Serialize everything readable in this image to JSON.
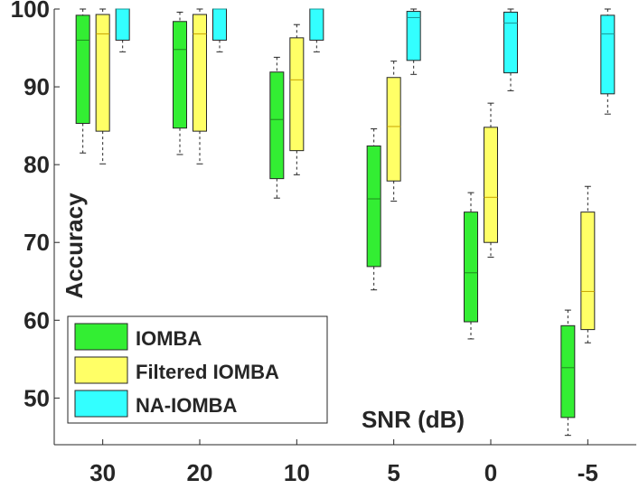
{
  "chart_data": {
    "type": "box",
    "title": "",
    "xlabel": "SNR (dB)",
    "ylabel": "Accuracy",
    "ylim": [
      44,
      100
    ],
    "yticks": [
      50,
      60,
      70,
      80,
      90,
      100
    ],
    "categories": [
      "30",
      "20",
      "10",
      "5",
      "0",
      "-5"
    ],
    "legend": {
      "placement": "bottom-left",
      "entries": [
        "IOMBA",
        "Filtered IOMBA",
        "NA-IOMBA"
      ]
    },
    "series": [
      {
        "name": "IOMBA",
        "color": "#33ee33",
        "median_color": "#1e8a1e",
        "boxes": [
          {
            "min": 81.5,
            "q1": 85.3,
            "median": 96.0,
            "q3": 99.2,
            "max": 100.0
          },
          {
            "min": 81.3,
            "q1": 84.7,
            "median": 94.8,
            "q3": 98.4,
            "max": 99.6
          },
          {
            "min": 75.7,
            "q1": 78.2,
            "median": 85.8,
            "q3": 91.9,
            "max": 93.8
          },
          {
            "min": 63.9,
            "q1": 66.9,
            "median": 75.6,
            "q3": 82.4,
            "max": 84.6
          },
          {
            "min": 57.6,
            "q1": 59.8,
            "median": 66.1,
            "q3": 73.9,
            "max": 76.4
          },
          {
            "min": 45.2,
            "q1": 47.5,
            "median": 53.9,
            "q3": 59.3,
            "max": 61.3
          }
        ]
      },
      {
        "name": "Filtered IOMBA",
        "color": "#ffff66",
        "median_color": "#c9a400",
        "boxes": [
          {
            "min": 80.1,
            "q1": 84.3,
            "median": 96.8,
            "q3": 99.3,
            "max": 100.0
          },
          {
            "min": 80.1,
            "q1": 84.3,
            "median": 96.8,
            "q3": 99.3,
            "max": 100.0
          },
          {
            "min": 78.7,
            "q1": 81.8,
            "median": 90.9,
            "q3": 96.3,
            "max": 98.0
          },
          {
            "min": 75.3,
            "q1": 77.9,
            "median": 84.9,
            "q3": 91.2,
            "max": 93.3
          },
          {
            "min": 68.1,
            "q1": 70.0,
            "median": 75.8,
            "q3": 84.8,
            "max": 87.9
          },
          {
            "min": 57.1,
            "q1": 58.8,
            "median": 63.7,
            "q3": 73.9,
            "max": 77.2
          }
        ]
      },
      {
        "name": "NA-IOMBA",
        "color": "#33ffff",
        "median_color": "#1a9a9a",
        "boxes": [
          {
            "min": 94.5,
            "q1": 96.0,
            "median": 100.0,
            "q3": 100.0,
            "max": 100.0
          },
          {
            "min": 94.5,
            "q1": 96.0,
            "median": 100.0,
            "q3": 100.0,
            "max": 100.0
          },
          {
            "min": 94.5,
            "q1": 96.0,
            "median": 100.0,
            "q3": 100.0,
            "max": 100.0
          },
          {
            "min": 91.6,
            "q1": 93.4,
            "median": 98.9,
            "q3": 99.7,
            "max": 100.0
          },
          {
            "min": 89.5,
            "q1": 91.8,
            "median": 98.2,
            "q3": 99.6,
            "max": 100.0
          },
          {
            "min": 86.5,
            "q1": 89.1,
            "median": 96.8,
            "q3": 99.2,
            "max": 100.0
          }
        ]
      }
    ]
  }
}
